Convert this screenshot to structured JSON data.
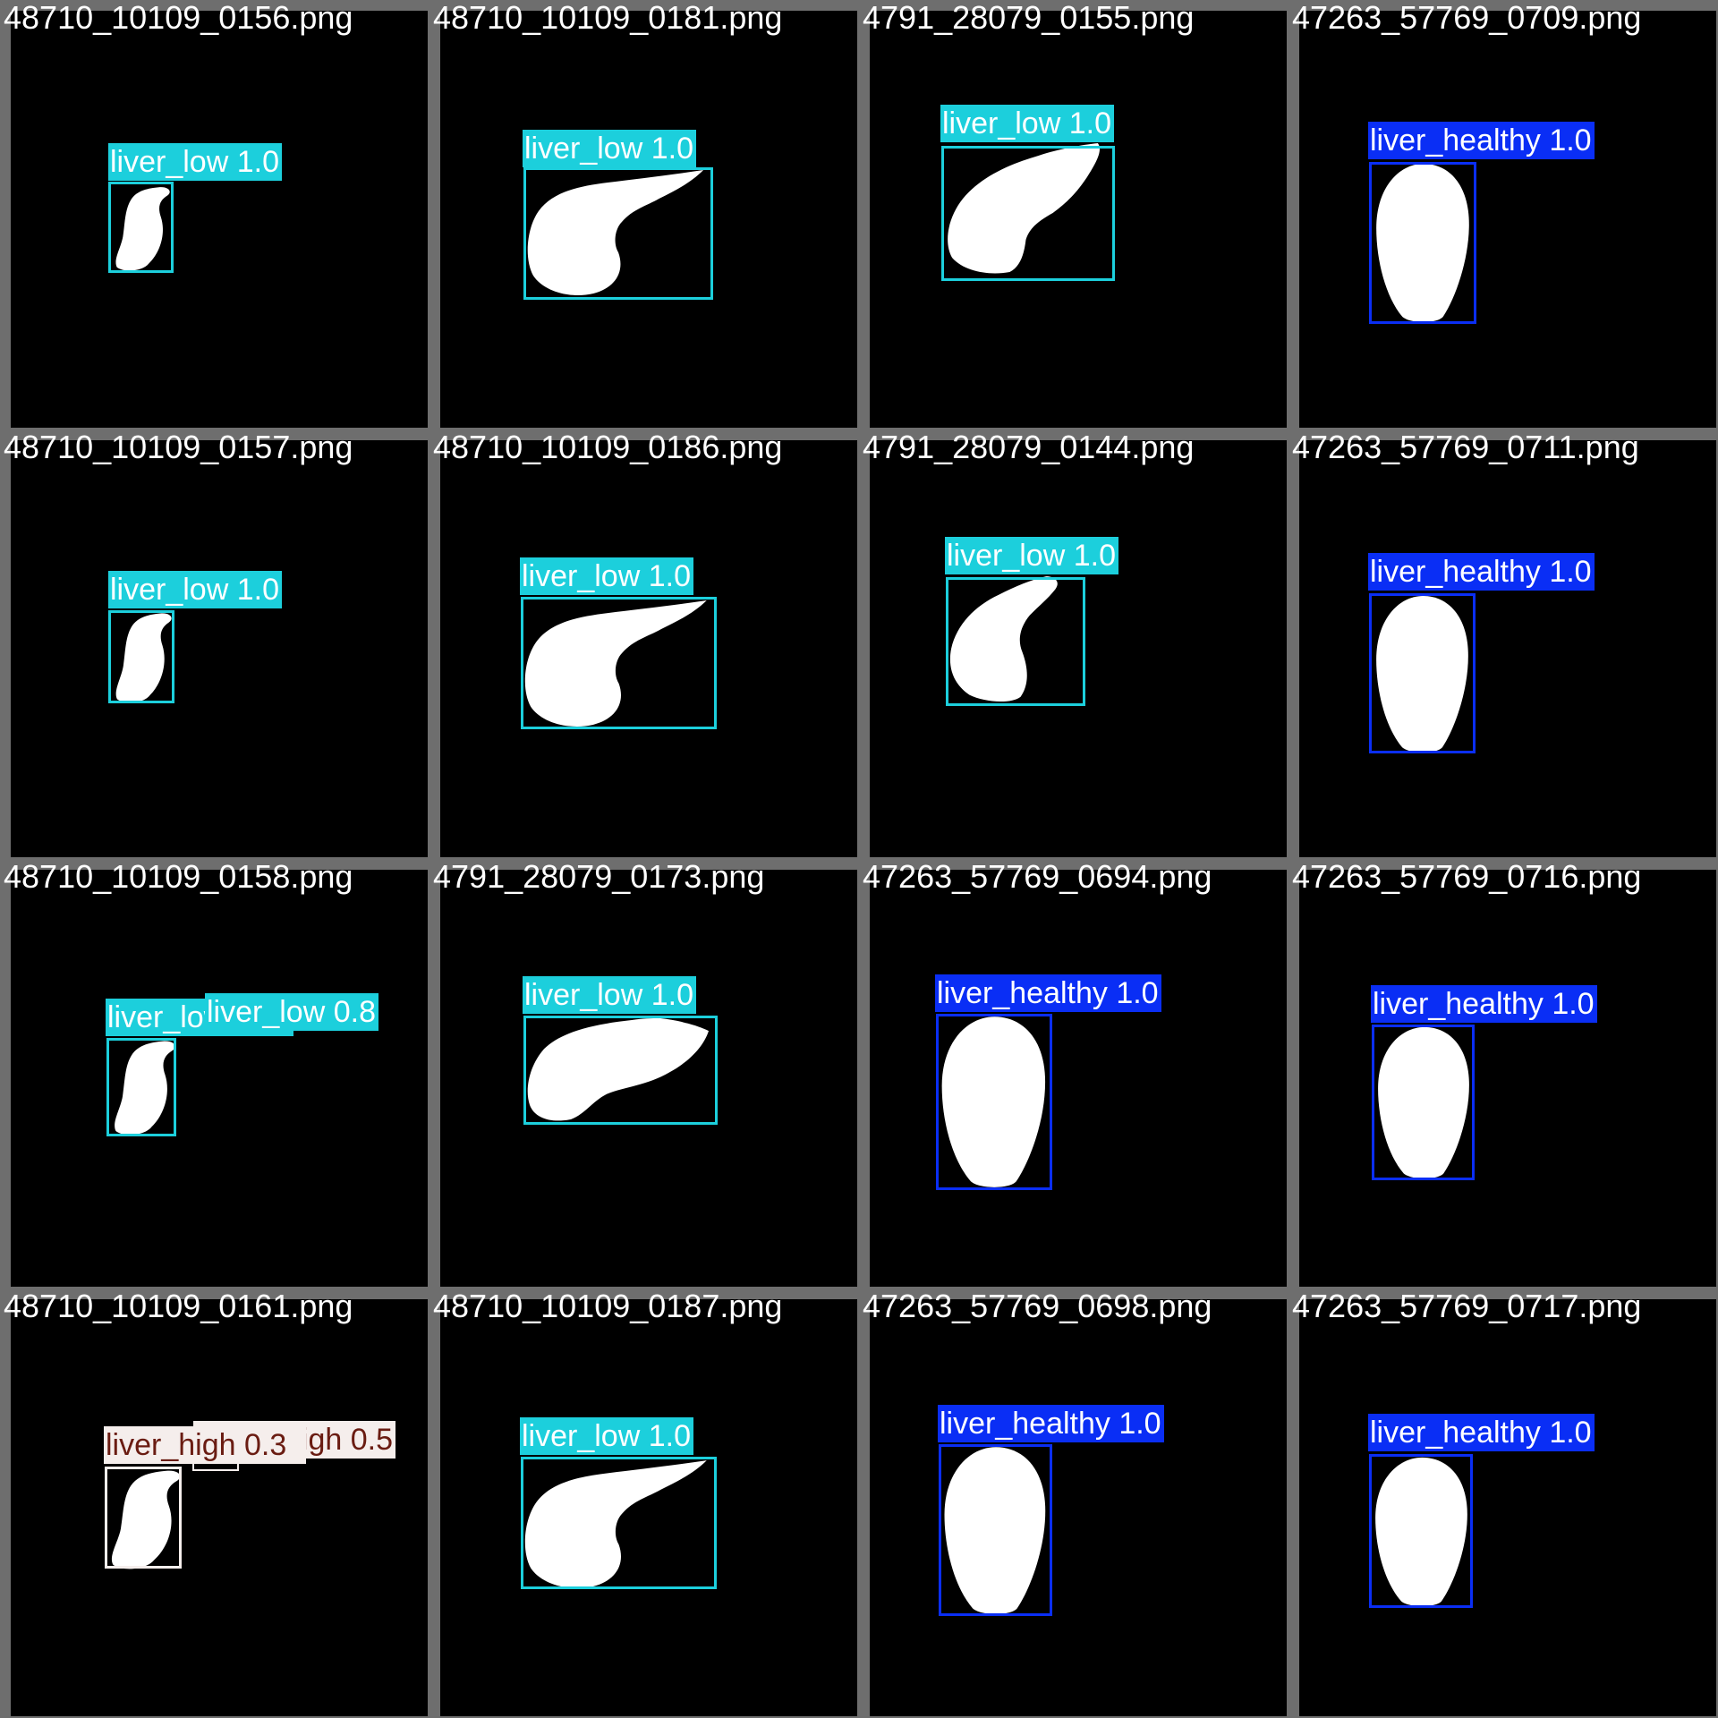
{
  "colors": {
    "liver_low": "#1ccfdc",
    "liver_healthy": "#0a2ef5",
    "liver_high": "#f5eeec",
    "liver_high_text": "#6a1c12",
    "background": "#6e6e6e",
    "tile": "#000000"
  },
  "tiles": [
    {
      "filename": "48710_10109_0156.png",
      "shape": "small",
      "detections": [
        {
          "cls": "liver_low",
          "label": "liver_low 1.0"
        }
      ]
    },
    {
      "filename": "48710_10109_0181.png",
      "shape": "wide1",
      "detections": [
        {
          "cls": "liver_low",
          "label": "liver_low 1.0"
        }
      ]
    },
    {
      "filename": "4791_28079_0155.png",
      "shape": "wide2",
      "detections": [
        {
          "cls": "liver_low",
          "label": "liver_low 1.0"
        }
      ]
    },
    {
      "filename": "47263_57769_0709.png",
      "shape": "oval",
      "detections": [
        {
          "cls": "liver_healthy",
          "label": "liver_healthy 1.0"
        }
      ]
    },
    {
      "filename": "48710_10109_0157.png",
      "shape": "small",
      "detections": [
        {
          "cls": "liver_low",
          "label": "liver_low 1.0"
        }
      ]
    },
    {
      "filename": "48710_10109_0186.png",
      "shape": "wide1",
      "detections": [
        {
          "cls": "liver_low",
          "label": "liver_low 1.0"
        }
      ]
    },
    {
      "filename": "4791_28079_0144.png",
      "shape": "mid",
      "detections": [
        {
          "cls": "liver_low",
          "label": "liver_low 1.0"
        }
      ]
    },
    {
      "filename": "47263_57769_0711.png",
      "shape": "oval",
      "detections": [
        {
          "cls": "liver_healthy",
          "label": "liver_healthy 1.0"
        }
      ]
    },
    {
      "filename": "48710_10109_0158.png",
      "shape": "small",
      "detections": [
        {
          "cls": "liver_low",
          "label": "liver_low 1.0"
        },
        {
          "cls": "liver_low",
          "label": "liver_low 0.8"
        }
      ]
    },
    {
      "filename": "4791_28079_0173.png",
      "shape": "flat",
      "detections": [
        {
          "cls": "liver_low",
          "label": "liver_low 1.0"
        }
      ]
    },
    {
      "filename": "47263_57769_0694.png",
      "shape": "oval",
      "detections": [
        {
          "cls": "liver_healthy",
          "label": "liver_healthy 1.0"
        }
      ]
    },
    {
      "filename": "47263_57769_0716.png",
      "shape": "oval",
      "detections": [
        {
          "cls": "liver_healthy",
          "label": "liver_healthy 1.0"
        }
      ]
    },
    {
      "filename": "48710_10109_0161.png",
      "shape": "small",
      "detections": [
        {
          "cls": "liver_high",
          "label": "liver_high 0.3"
        },
        {
          "cls": "liver_high",
          "label": "liver_high 0.5"
        }
      ]
    },
    {
      "filename": "48710_10109_0187.png",
      "shape": "wide1",
      "detections": [
        {
          "cls": "liver_low",
          "label": "liver_low 1.0"
        }
      ]
    },
    {
      "filename": "47263_57769_0698.png",
      "shape": "oval",
      "detections": [
        {
          "cls": "liver_healthy",
          "label": "liver_healthy 1.0"
        }
      ]
    },
    {
      "filename": "47263_57769_0717.png",
      "shape": "oval",
      "detections": [
        {
          "cls": "liver_healthy",
          "label": "liver_healthy 1.0"
        }
      ]
    }
  ]
}
